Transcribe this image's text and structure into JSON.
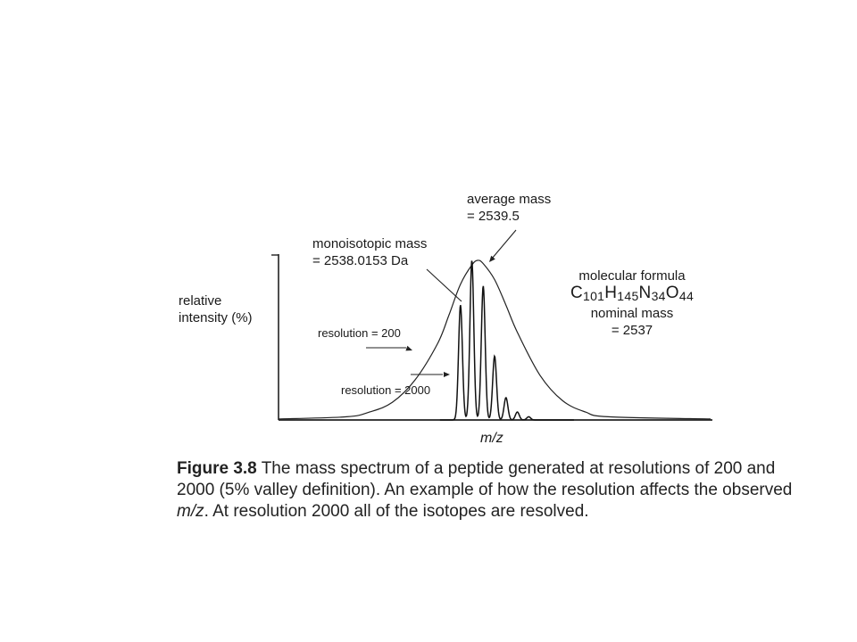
{
  "chart_data": {
    "type": "line",
    "xlabel": "m/z",
    "ylabel": "relative intensity (%)",
    "annotations": {
      "average_mass": [
        "average mass",
        "= 2539.5"
      ],
      "monoisotopic_mass": [
        "monoisotopic mass",
        "= 2538.0153 Da"
      ],
      "molecular_formula_label": "molecular formula",
      "formula": {
        "C": "C",
        "C_n": "101",
        "H": "H",
        "H_n": "145",
        "N": "N",
        "N_n": "34",
        "O": "O",
        "O_n": "44"
      },
      "nominal_mass": [
        "nominal mass",
        "= 2537"
      ],
      "resolution_200": "resolution = 200",
      "resolution_2000": "resolution = 2000"
    },
    "series": [
      {
        "name": "resolution = 200",
        "x": [
          2528,
          2530,
          2532,
          2534,
          2536,
          2537,
          2538,
          2539,
          2539.5,
          2540,
          2541,
          2542,
          2543,
          2545,
          2547,
          2549,
          2551
        ],
        "y": [
          2,
          5,
          11,
          25,
          48,
          66,
          85,
          97,
          100,
          98,
          88,
          72,
          55,
          28,
          12,
          5,
          2
        ]
      },
      {
        "name": "resolution = 2000",
        "isotope_peaks": {
          "x": [
            2538,
            2539,
            2540,
            2541,
            2542,
            2543,
            2544
          ],
          "y": [
            72,
            100,
            84,
            40,
            14,
            5,
            2
          ]
        }
      }
    ]
  },
  "caption": {
    "figure_number": "Figure 3.8",
    "text_1": "The mass spectrum of a peptide generated at resolutions of 200 and 2000 (5% valley definition). An example of how the resolution affects the observed ",
    "mz": "m/z",
    "text_2": ". At resolution 2000 all of the isotopes are resolved."
  }
}
